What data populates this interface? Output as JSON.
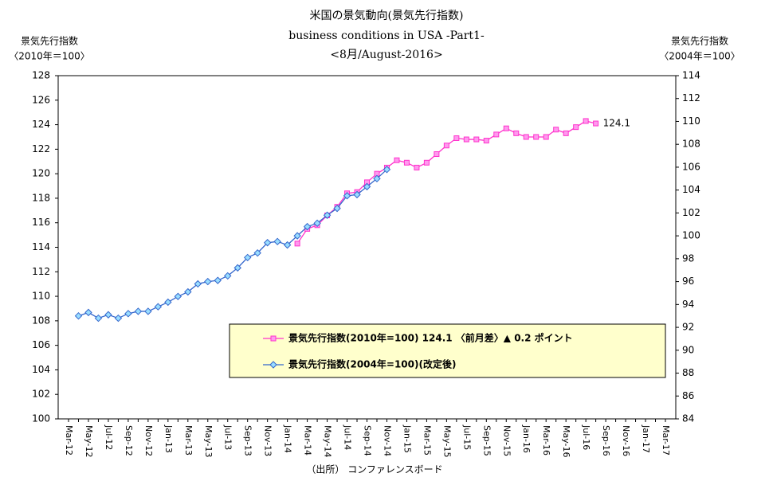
{
  "chart_data": {
    "type": "line",
    "title": "米国の景気動向(景気先行指数)",
    "subtitle": "business conditions in USA -Part1-",
    "subtitle2": "<8月/August-2016>",
    "y_label": "景気先行指数",
    "y_label_unit": "〈2010年＝100〉",
    "y2_label": "景気先行指数",
    "y2_label_unit": "〈2004年＝100〉",
    "source": "（出所） コンファレンスボード",
    "categories": [
      "Mar-12",
      null,
      "May-12",
      null,
      "Jul-12",
      null,
      "Sep-12",
      null,
      "Nov-12",
      null,
      "Jan-13",
      null,
      "Mar-13",
      null,
      "May-13",
      null,
      "Jul-13",
      null,
      "Sep-13",
      null,
      "Nov-13",
      null,
      "Jan-14",
      null,
      "Mar-14",
      null,
      "May-14",
      null,
      "Jul-14",
      null,
      "Sep-14",
      null,
      "Nov-14",
      null,
      "Jan-15",
      null,
      "Mar-15",
      null,
      "May-15",
      null,
      "Jul-15",
      null,
      "Sep-15",
      null,
      "Nov-15",
      null,
      "Jan-16",
      null,
      "Mar-16",
      null,
      "May-16",
      null,
      "Jul-16",
      null,
      "Sep-16",
      null,
      "Nov-16",
      null,
      "Jan-17",
      null,
      "Mar-17"
    ],
    "series": [
      {
        "name": "景気先行指数(2010年=100) 124.1 〈前月差〉▲ 0.2 ポイント",
        "color": "#ff33cc",
        "marker_fill": "#ff99ee",
        "marker": "square",
        "values": [
          null,
          null,
          null,
          null,
          null,
          null,
          null,
          null,
          null,
          null,
          null,
          null,
          null,
          null,
          null,
          null,
          null,
          null,
          null,
          null,
          null,
          null,
          null,
          114.3,
          115.5,
          115.8,
          116.6,
          117.3,
          118.4,
          118.5,
          119.3,
          120.0,
          120.5,
          121.1,
          120.9,
          120.5,
          120.9,
          121.6,
          122.3,
          122.9,
          122.8,
          122.8,
          122.7,
          123.2,
          123.7,
          123.3,
          123.0,
          123.0,
          123.0,
          123.6,
          123.3,
          123.8,
          124.3,
          124.1,
          null,
          null,
          null,
          null,
          null,
          null,
          null
        ]
      },
      {
        "name": "景気先行指数(2004年=100)(改定後)",
        "color": "#3366cc",
        "marker_fill": "#99ddff",
        "marker": "diamond",
        "axis": "y2",
        "values": [
          null,
          93.0,
          93.3,
          92.8,
          93.1,
          92.8,
          93.2,
          93.4,
          93.4,
          93.8,
          94.2,
          94.7,
          95.1,
          95.8,
          96.0,
          96.1,
          96.5,
          97.2,
          98.1,
          98.5,
          99.4,
          99.5,
          99.2,
          100.0,
          100.8,
          101.1,
          101.8,
          102.4,
          103.5,
          103.6,
          104.3,
          105.0,
          105.8,
          null,
          null,
          null,
          null,
          null,
          null,
          null,
          null,
          null,
          null,
          null,
          null,
          null,
          null,
          null,
          null,
          null,
          null,
          null,
          null,
          null,
          null,
          null,
          null,
          null,
          null,
          null,
          null
        ]
      }
    ],
    "ylim": [
      100,
      128
    ],
    "yticks": [
      100,
      102,
      104,
      106,
      108,
      110,
      112,
      114,
      116,
      118,
      120,
      122,
      124,
      126,
      128
    ],
    "y2lim": [
      84,
      114
    ],
    "y2ticks": [
      84,
      86,
      88,
      90,
      92,
      94,
      96,
      98,
      100,
      102,
      104,
      106,
      108,
      110,
      112,
      114
    ],
    "grid": false,
    "legend_fill": "#ffffcc"
  }
}
